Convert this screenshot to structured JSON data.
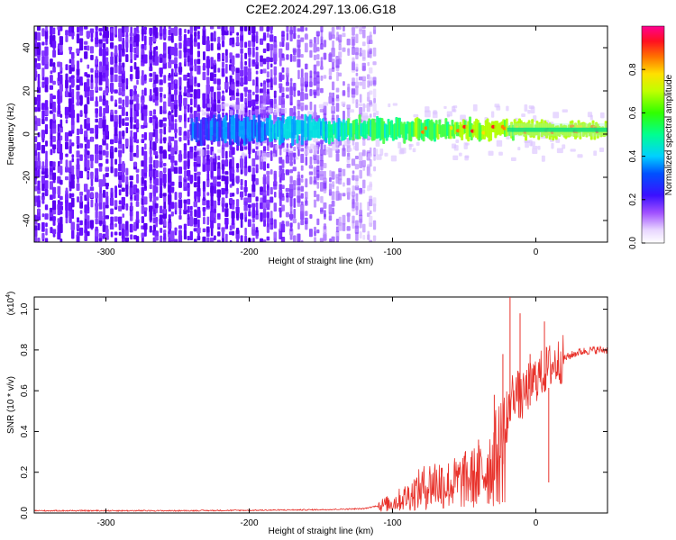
{
  "title": "C2E2.2024.297.13.06.G18",
  "chart_data": [
    {
      "type": "heatmap",
      "xlabel": "Height of straight line (km)",
      "ylabel": "Frequency (Hz)",
      "xlim": [
        -350,
        50
      ],
      "ylim": [
        -50,
        50
      ],
      "xticks": [
        -300,
        -200,
        -100,
        0
      ],
      "yticks": [
        -40,
        -20,
        0,
        20,
        40
      ],
      "colorbar": {
        "label": "Normalized spectral amplitude",
        "range": [
          0.0,
          1.0
        ],
        "ticks": [
          0.0,
          0.2,
          0.4,
          0.6,
          0.8
        ],
        "tick_labels": [
          "0.0",
          "0.2",
          "0.4",
          "0.6",
          "0.8"
        ]
      },
      "features": {
        "noise_region_x": [
          -350,
          -110
        ],
        "signal_band_start_x": -240,
        "signal_center_freq_hz": 2,
        "signal_halfwidth_hz": [
          6,
          3
        ]
      }
    },
    {
      "type": "line",
      "xlabel": "Height of straight line (km)",
      "ylabel": "SNR (10 * v/v)",
      "ylabel_multiplier": "(x10",
      "ylabel_multiplier_exp": "4",
      "ylabel_multiplier_close": ")",
      "xlim": [
        -350,
        50
      ],
      "ylim": [
        0,
        1.06
      ],
      "xticks": [
        -300,
        -200,
        -100,
        0
      ],
      "yticks": [
        0.0,
        0.2,
        0.4,
        0.6,
        0.8,
        1.0
      ],
      "ytick_labels": [
        "0.0",
        "0.2",
        "0.4",
        "0.6",
        "0.8",
        "1.0"
      ],
      "color": "#e8322b",
      "series": [
        {
          "x": [
            -350,
            -300,
            -250,
            -200,
            -150,
            -120,
            -100,
            -90,
            -80,
            -70,
            -60,
            -50,
            -40,
            -30,
            -25,
            -20,
            -18,
            -15,
            -12,
            -10,
            -5,
            0,
            10,
            20,
            30,
            40,
            50
          ],
          "y": [
            0.01,
            0.01,
            0.01,
            0.012,
            0.015,
            0.02,
            0.05,
            0.08,
            0.12,
            0.15,
            0.14,
            0.16,
            0.18,
            0.25,
            0.3,
            0.4,
            0.55,
            0.6,
            0.58,
            0.55,
            0.62,
            0.66,
            0.72,
            0.76,
            0.79,
            0.8,
            0.8
          ]
        }
      ],
      "spikes": [
        {
          "x": -66,
          "y": 0.22
        },
        {
          "x": -50,
          "y": 0.28
        },
        {
          "x": -40,
          "y": 0.36
        },
        {
          "x": -29,
          "y": 0.58
        },
        {
          "x": -23,
          "y": 0.78
        },
        {
          "x": -18,
          "y": 1.06
        },
        {
          "x": -11,
          "y": 0.98
        },
        {
          "x": -4,
          "y": 0.78
        },
        {
          "x": 6,
          "y": 0.94
        },
        {
          "x": 9,
          "y": 0.15
        }
      ]
    }
  ]
}
